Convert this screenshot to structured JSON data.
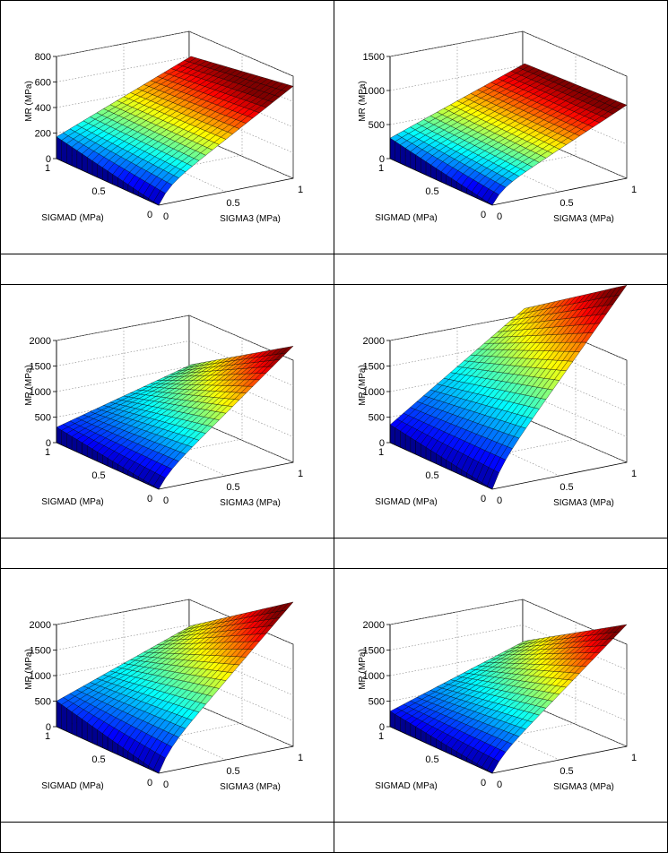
{
  "chart_data": [
    {
      "type": "surface",
      "xlabel": "SIGMA3 (MPa)",
      "ylabel": "SIGMAD (MPa)",
      "zlabel": "MR (MPa)",
      "xticks": [
        "0",
        "0.5",
        "1"
      ],
      "yticks": [
        "0",
        "0.5",
        "1"
      ],
      "zticks": [
        "0",
        "200",
        "400",
        "600",
        "800"
      ],
      "zlim": [
        0,
        800
      ],
      "corners": {
        "s3_0_sd_0": 0,
        "s3_1_sd_0": 620,
        "s3_0_sd_1": 170,
        "s3_1_sd_1": 590
      },
      "grid": true,
      "colormap": "jet"
    },
    {
      "type": "surface",
      "xlabel": "SIGMA3 (MPa)",
      "ylabel": "SIGMAD (MPa)",
      "zlabel": "MR (MPa)",
      "xticks": [
        "0",
        "0.5",
        "1"
      ],
      "yticks": [
        "0",
        "0.5",
        "1"
      ],
      "zticks": [
        "0",
        "500",
        "1000",
        "1500"
      ],
      "zlim": [
        0,
        1500
      ],
      "corners": {
        "s3_0_sd_0": 0,
        "s3_1_sd_0": 900,
        "s3_0_sd_1": 300,
        "s3_1_sd_1": 1000
      },
      "grid": true,
      "colormap": "jet"
    },
    {
      "type": "surface",
      "xlabel": "SIGMA3 (MPa)",
      "ylabel": "SIGMAD (MPa)",
      "zlabel": "MR (MPa)",
      "xticks": [
        "0",
        "0.5",
        "1"
      ],
      "yticks": [
        "0",
        "0.5",
        "1"
      ],
      "zticks": [
        "0",
        "500",
        "1000",
        "1500",
        "2000"
      ],
      "zlim": [
        0,
        2000
      ],
      "corners": {
        "s3_0_sd_0": 0,
        "s3_1_sd_0": 2100,
        "s3_0_sd_1": 300,
        "s3_1_sd_1": 1000
      },
      "grid": true,
      "colormap": "jet"
    },
    {
      "type": "surface",
      "xlabel": "SIGMA3 (MPa)",
      "ylabel": "SIGMAD (MPa)",
      "zlabel": "MR (MPa)",
      "xticks": [
        "0",
        "0.5",
        "1"
      ],
      "yticks": [
        "0",
        "0.5",
        "1"
      ],
      "zticks": [
        "0",
        "500",
        "1000",
        "1500",
        "2000"
      ],
      "zlim": [
        0,
        2000
      ],
      "corners": {
        "s3_0_sd_0": 0,
        "s3_1_sd_0": 3200,
        "s3_0_sd_1": 350,
        "s3_1_sd_1": 2100
      },
      "grid": true,
      "colormap": "jet"
    },
    {
      "type": "surface",
      "xlabel": "SIGMA3 (MPa)",
      "ylabel": "SIGMAD (MPa)",
      "zlabel": "MR (MPa)",
      "xticks": [
        "0",
        "0.5",
        "1"
      ],
      "yticks": [
        "0",
        "0.5",
        "1"
      ],
      "zticks": [
        "0",
        "500",
        "1000",
        "1500",
        "2000"
      ],
      "zlim": [
        0,
        2000
      ],
      "corners": {
        "s3_0_sd_0": 0,
        "s3_1_sd_0": 2550,
        "s3_0_sd_1": 500,
        "s3_1_sd_1": 1450
      },
      "grid": true,
      "colormap": "jet"
    },
    {
      "type": "surface",
      "xlabel": "SIGMA3 (MPa)",
      "ylabel": "SIGMAD (MPa)",
      "zlabel": "MR (MPa)",
      "xticks": [
        "0",
        "0.5",
        "1"
      ],
      "yticks": [
        "0",
        "0.5",
        "1"
      ],
      "zticks": [
        "0",
        "500",
        "1000",
        "1500",
        "2000"
      ],
      "zlim": [
        0,
        2000
      ],
      "corners": {
        "s3_0_sd_0": 0,
        "s3_1_sd_0": 2200,
        "s3_0_sd_1": 300,
        "s3_1_sd_1": 1150
      },
      "grid": true,
      "colormap": "jet"
    }
  ]
}
